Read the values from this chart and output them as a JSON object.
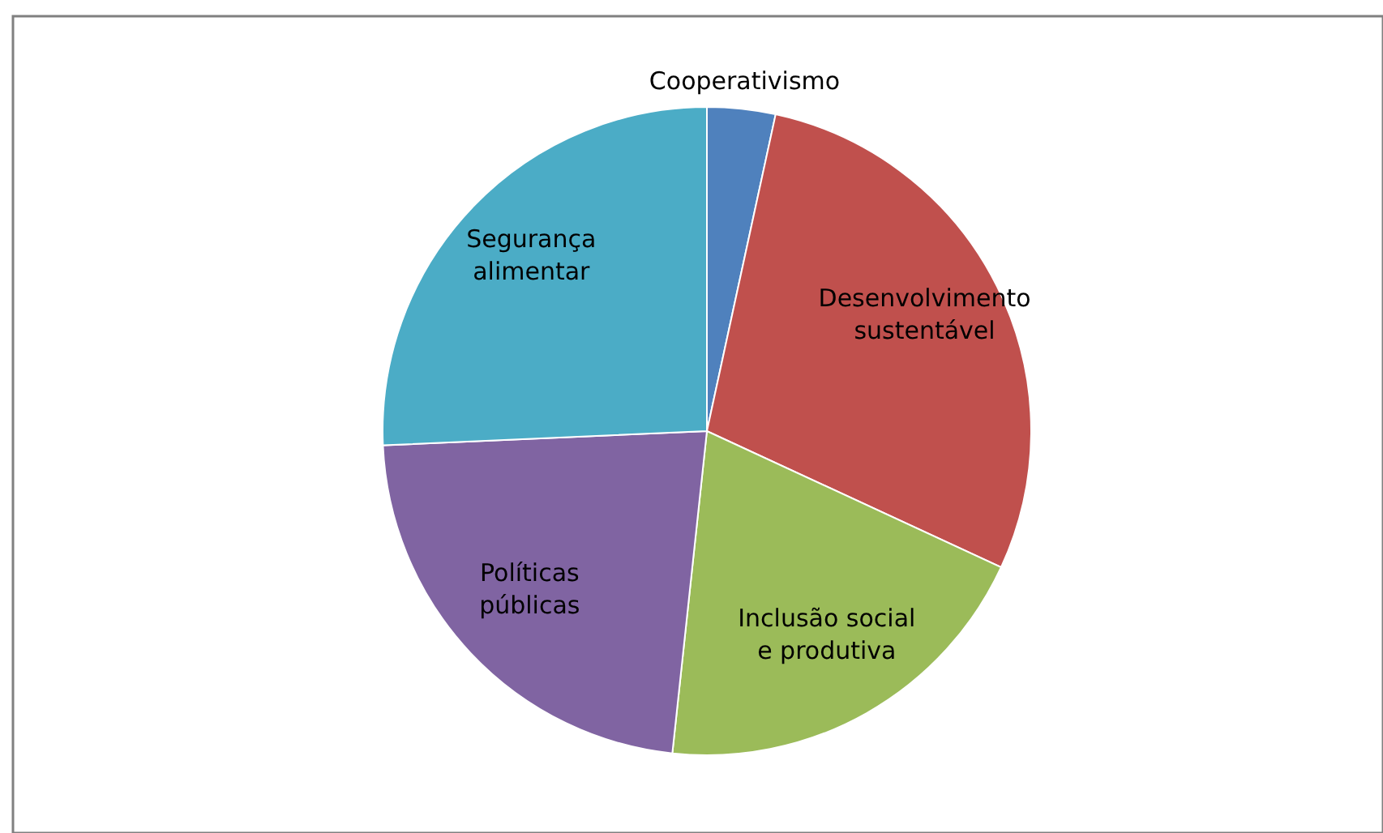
{
  "chart_data": {
    "type": "pie",
    "categories": [
      "Cooperativismo",
      "Desenvolvimento sustentável",
      "Inclusão social e produtiva",
      "Políticas públicas",
      "Segurança alimentar"
    ],
    "values": [
      3.4,
      28.5,
      19.8,
      22.6,
      25.7
    ],
    "colors": [
      "#4f81bd",
      "#c0504d",
      "#9bbb59",
      "#8064a2",
      "#4bacc6"
    ]
  }
}
